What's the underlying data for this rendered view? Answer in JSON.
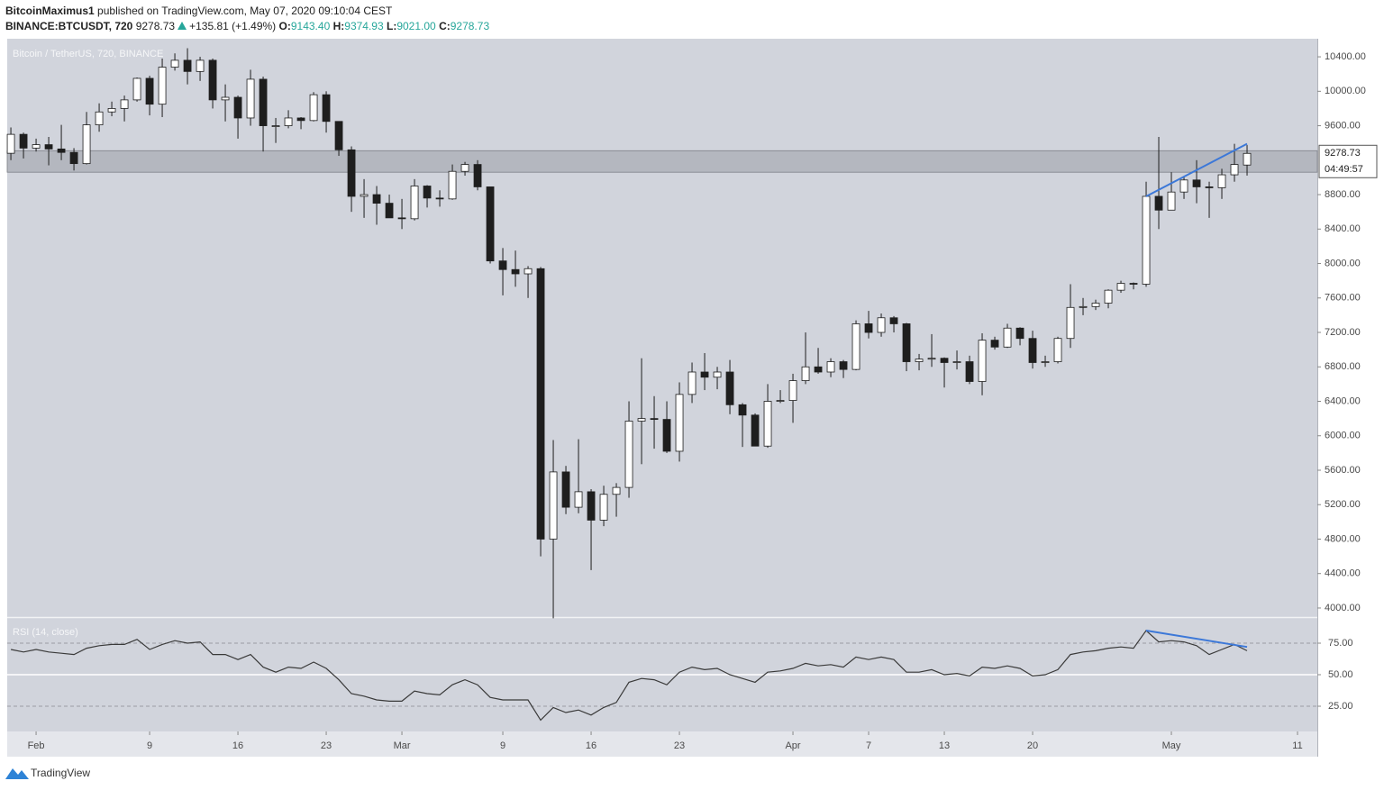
{
  "header": {
    "author": "BitcoinMaximus1",
    "published": "published on TradingView.com, May 07, 2020 09:10:04 CEST",
    "symbol": "BINANCE:BTCUSDT, 720",
    "price": "9278.73",
    "change": "+135.81 (+1.49%)",
    "o_label": "O:",
    "open": "9143.40",
    "h_label": "H:",
    "high": "9374.93",
    "l_label": "L:",
    "low": "9021.00",
    "c_label": "C:",
    "close": "9278.73"
  },
  "footer": {
    "brand": "TradingView"
  },
  "chart_data": [
    {
      "type": "candlestick",
      "title": "Bitcoin / TetherUS, 720, BINANCE",
      "up_color": "#ffffff",
      "down_color": "#1e1e1e",
      "wick_color": "#1e1e1e",
      "x": [
        -2,
        -1,
        0,
        1,
        2,
        3,
        4,
        5,
        6,
        7,
        8,
        9,
        10,
        11,
        12,
        13,
        14,
        15,
        16,
        17,
        18,
        19,
        20,
        21,
        22,
        23,
        24,
        25,
        26,
        27,
        28,
        29,
        30,
        31,
        32,
        33,
        34,
        35,
        36,
        37,
        38,
        39,
        40,
        41,
        42,
        43,
        44,
        45,
        46,
        47,
        48,
        49,
        50,
        51,
        52,
        53,
        54,
        55,
        56,
        57,
        58,
        59,
        60,
        61,
        62,
        63,
        64,
        65,
        66,
        67,
        68,
        69,
        70,
        71,
        72,
        73,
        74,
        75,
        76,
        77,
        78,
        79,
        80,
        81,
        82,
        83,
        84,
        85,
        86,
        87,
        88,
        89,
        90,
        91,
        92,
        93,
        94,
        95,
        96
      ],
      "open": [
        9280,
        9500,
        9340,
        9380,
        9330,
        9290,
        9160,
        9610,
        9760,
        9800,
        9900,
        10150,
        9850,
        10280,
        10360,
        10230,
        10360,
        9900,
        9930,
        9690,
        10140,
        9600,
        9600,
        9690,
        9660,
        9960,
        9650,
        9320,
        8780,
        8800,
        8700,
        8530,
        8520,
        8900,
        8760,
        8750,
        9070,
        9150,
        8890,
        8030,
        7930,
        7880,
        7940,
        4800,
        5580,
        5170,
        5350,
        5020,
        5320,
        5400,
        6170,
        6200,
        6190,
        5820,
        6480,
        6740,
        6680,
        6740,
        6360,
        6240,
        5880,
        6400,
        6410,
        6640,
        6800,
        6740,
        6860,
        6770,
        7300,
        7200,
        7370,
        7300,
        6860,
        6890,
        6900,
        6850,
        6860,
        6630,
        7110,
        7030,
        7250,
        7130,
        6850,
        6860,
        7130,
        7490,
        7500,
        7540,
        7690,
        7770,
        7760,
        8780,
        8620,
        8830,
        8970,
        8890,
        8880,
        9030,
        9143.4
      ],
      "high": [
        9580,
        9520,
        9450,
        9470,
        9610,
        9340,
        9760,
        9860,
        9880,
        9950,
        10160,
        10180,
        10380,
        10440,
        10500,
        10400,
        10380,
        10080,
        9950,
        10250,
        10170,
        9690,
        9780,
        9700,
        9990,
        10000,
        9650,
        9360,
        8980,
        8900,
        8800,
        8750,
        8980,
        8910,
        8850,
        9150,
        9180,
        9200,
        8890,
        8180,
        8150,
        7970,
        7960,
        5950,
        5650,
        5960,
        5380,
        5420,
        5450,
        6400,
        6900,
        6460,
        6400,
        6620,
        6850,
        6960,
        6800,
        6880,
        6380,
        6260,
        6600,
        6530,
        6720,
        7200,
        7020,
        6900,
        6880,
        7340,
        7450,
        7420,
        7390,
        7310,
        6950,
        7180,
        6910,
        6990,
        6930,
        7190,
        7150,
        7300,
        7260,
        7220,
        6930,
        7150,
        7760,
        7600,
        7580,
        7700,
        7800,
        7780,
        8950,
        9470,
        9060,
        9010,
        9200,
        8950,
        9100,
        9390,
        9374.93
      ],
      "low": [
        9200,
        9220,
        9300,
        9140,
        9200,
        9080,
        9150,
        9530,
        9710,
        9650,
        9880,
        9720,
        9700,
        10240,
        10080,
        10120,
        9800,
        9650,
        9450,
        9600,
        9300,
        9400,
        9570,
        9560,
        9650,
        9520,
        9250,
        8600,
        8530,
        8450,
        8550,
        8400,
        8500,
        8650,
        8660,
        8740,
        9020,
        8850,
        8000,
        7630,
        7730,
        7600,
        4600,
        3880,
        5090,
        5100,
        4440,
        4950,
        5060,
        5280,
        5670,
        5850,
        5800,
        5700,
        6380,
        6530,
        6540,
        6250,
        5870,
        5880,
        5860,
        6380,
        6150,
        6600,
        6720,
        6680,
        6670,
        6760,
        7130,
        7150,
        7200,
        6750,
        6760,
        6800,
        6560,
        6770,
        6600,
        6470,
        7000,
        7020,
        7050,
        6780,
        6800,
        6840,
        7020,
        7400,
        7460,
        7480,
        7660,
        7700,
        7730,
        8400,
        8620,
        8750,
        8700,
        8530,
        8750,
        8950,
        9021.0
      ],
      "close": [
        9500,
        9340,
        9380,
        9330,
        9290,
        9160,
        9610,
        9760,
        9800,
        9900,
        10150,
        9850,
        10280,
        10360,
        10230,
        10360,
        9900,
        9930,
        9690,
        10140,
        9600,
        9600,
        9690,
        9660,
        9960,
        9650,
        9320,
        8780,
        8800,
        8700,
        8530,
        8520,
        8900,
        8760,
        8750,
        9070,
        9150,
        8890,
        8030,
        7930,
        7880,
        7940,
        4800,
        5580,
        5170,
        5350,
        5020,
        5320,
        5400,
        6170,
        6200,
        6190,
        5820,
        6480,
        6740,
        6680,
        6740,
        6360,
        6240,
        5880,
        6400,
        6410,
        6640,
        6800,
        6740,
        6860,
        6770,
        7300,
        7200,
        7370,
        7300,
        6860,
        6890,
        6900,
        6850,
        6860,
        6630,
        7110,
        7030,
        7250,
        7130,
        6850,
        6860,
        7130,
        7490,
        7500,
        7540,
        7690,
        7770,
        7760,
        8780,
        8620,
        8830,
        8970,
        8890,
        8880,
        9030,
        9150,
        9278.73
      ],
      "xlim": [
        -2.29,
        101.57
      ],
      "xticks": [
        {
          "value": 0,
          "label": "Feb"
        },
        9,
        16,
        23,
        {
          "value": 29,
          "label": "Mar"
        },
        {
          "value": 37,
          "label": "9"
        },
        {
          "value": 44,
          "label": "16"
        },
        {
          "value": 51,
          "label": "23"
        },
        {
          "value": 60,
          "label": "Apr"
        },
        {
          "value": 66,
          "label": "7"
        },
        {
          "value": 72,
          "label": "13"
        },
        {
          "value": 79,
          "label": "20"
        },
        {
          "value": 90,
          "label": "May"
        },
        {
          "value": 100,
          "label": "11"
        }
      ],
      "ylim": [
        3895,
        10610
      ],
      "yticks": [
        {
          "value": 4000,
          "label": "4000.00"
        },
        {
          "value": 4400,
          "label": "4400.00"
        },
        {
          "value": 4800,
          "label": "4800.00"
        },
        {
          "value": 5200,
          "label": "5200.00"
        },
        {
          "value": 5600,
          "label": "5600.00"
        },
        {
          "value": 6000,
          "label": "6000.00"
        },
        {
          "value": 6400,
          "label": "6400.00"
        },
        {
          "value": 6800,
          "label": "6800.00"
        },
        {
          "value": 7200,
          "label": "7200.00"
        },
        {
          "value": 7600,
          "label": "7600.00"
        },
        {
          "value": 8000,
          "label": "8000.00"
        },
        {
          "value": 8400,
          "label": "8400.00"
        },
        {
          "value": 8800,
          "label": "8800.00"
        },
        {
          "value": 9600,
          "label": "9600.00"
        },
        {
          "value": 10000,
          "label": "10000.00"
        },
        {
          "value": 10400,
          "label": "10400.00"
        }
      ],
      "zones": [
        {
          "from": 9060,
          "to": 9310,
          "color": "#b4b7bf"
        }
      ],
      "trendlines": [
        {
          "x": [
            88,
            96
          ],
          "y": [
            8780,
            9390
          ],
          "color": "#3c78d8"
        }
      ],
      "last_price": 9278.73,
      "countdown": "04:49:57"
    },
    {
      "type": "line",
      "title": "RSI (14, close)",
      "color": "#3a3a3a",
      "values": [
        70,
        68,
        70,
        68,
        67,
        66,
        71,
        73,
        74,
        74,
        78,
        70,
        74,
        77,
        75,
        76,
        66,
        66,
        62,
        66,
        56,
        52,
        56,
        55,
        60,
        55,
        46,
        35,
        33,
        30,
        29,
        29,
        37,
        35,
        34,
        42,
        46,
        42,
        32,
        30,
        30,
        30,
        14,
        24,
        20,
        22,
        18,
        24,
        28,
        44,
        47,
        46,
        42,
        52,
        56,
        54,
        55,
        50,
        47,
        44,
        52,
        53,
        55,
        59,
        57,
        58,
        56,
        64,
        62,
        64,
        62,
        52,
        52,
        54,
        50,
        51,
        49,
        56,
        55,
        57,
        55,
        49,
        50,
        54,
        66,
        68,
        69,
        71,
        72,
        71,
        85,
        76,
        77,
        76,
        73,
        66,
        70,
        74,
        69
      ],
      "ylim": [
        5,
        95
      ],
      "yticks": [
        {
          "value": 25,
          "label": "25.00"
        },
        {
          "value": 50,
          "label": "50.00"
        },
        {
          "value": 75,
          "label": "75.00"
        }
      ],
      "hlines": [
        {
          "value": 75,
          "color": "#9a9da5",
          "dashed": true
        },
        {
          "value": 50,
          "color": "#ffffff",
          "dashed": false
        },
        {
          "value": 25,
          "color": "#9a9da5",
          "dashed": true
        }
      ],
      "trendlines": [
        {
          "x": [
            88,
            96
          ],
          "y": [
            85,
            72
          ],
          "color": "#3c78d8"
        }
      ]
    }
  ]
}
